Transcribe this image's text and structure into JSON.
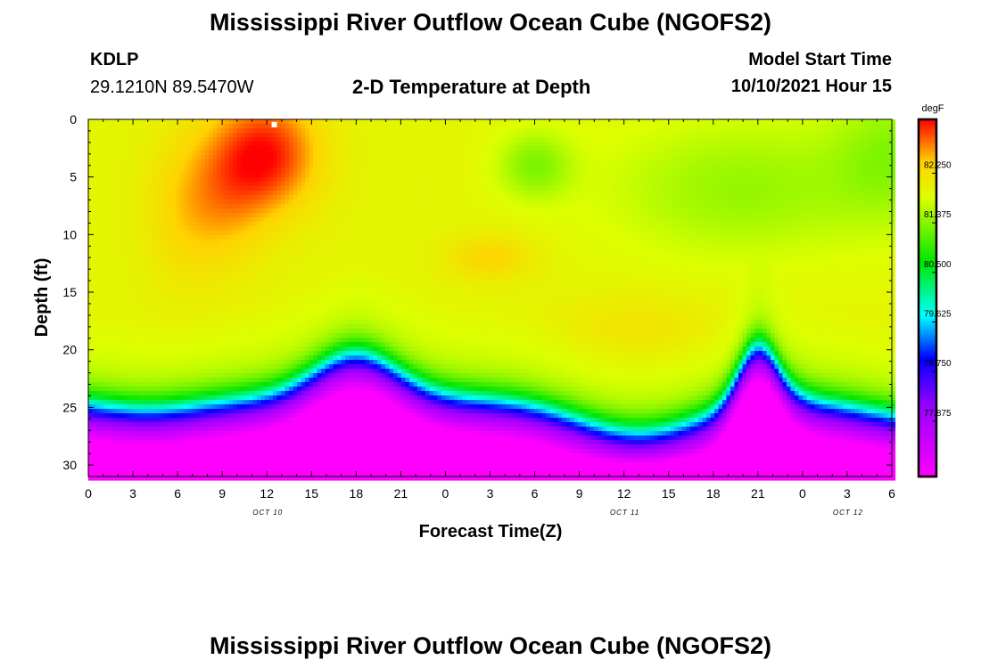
{
  "header": {
    "title": "Mississippi River Outflow Ocean Cube (NGOFS2)",
    "footer_title": "Mississippi River Outflow Ocean Cube (NGOFS2)",
    "station_id": "KDLP",
    "station_coords": "29.1210N  89.5470W",
    "plot_title": "2-D Temperature at Depth",
    "model_start_label": "Model Start Time",
    "model_start_value": "10/10/2021 Hour 15"
  },
  "chart_data": {
    "type": "heatmap",
    "title": "2-D Temperature at Depth",
    "xlabel": "Forecast Time(Z)",
    "ylabel": "Depth (ft)",
    "x_range_hours": [
      0,
      54
    ],
    "x_tick_labels": [
      "0",
      "3",
      "6",
      "9",
      "12",
      "15",
      "18",
      "21",
      "0",
      "3",
      "6",
      "9",
      "12",
      "15",
      "18",
      "21",
      "0",
      "3",
      "6"
    ],
    "date_labels": [
      {
        "text": "OCT 10",
        "at_hour": 12
      },
      {
        "text": "OCT 11",
        "at_hour": 36
      },
      {
        "text": "OCT 12",
        "at_hour": 51
      }
    ],
    "ylim": [
      0,
      31
    ],
    "y_ticks": [
      0,
      5,
      10,
      15,
      20,
      25,
      30
    ],
    "colorbar": {
      "unit": "degF",
      "range": [
        76.9,
        83.2
      ],
      "tick_labels": [
        "82.250",
        "81.375",
        "80.500",
        "79.625",
        "78.750",
        "77.875"
      ],
      "tick_values": [
        82.25,
        81.375,
        80.5,
        79.625,
        78.75,
        77.875
      ]
    },
    "temperature_features": [
      {
        "name": "warm surface core",
        "hour": 12,
        "depth_ft": 2,
        "degF": 83.1
      },
      {
        "name": "warm subsurface patch",
        "hour": 27,
        "depth_ft": 12,
        "degF": 82.4
      },
      {
        "name": "cool surface patch",
        "hour": 30,
        "depth_ft": 4,
        "degF": 81.4
      },
      {
        "name": "thermocline crest",
        "hour": 19,
        "depth_ft": 19,
        "degF": 80.5
      },
      {
        "name": "thermocline trough",
        "hour": 39,
        "depth_ft": 28,
        "degF": 79.6
      },
      {
        "name": "thermocline crest",
        "hour": 45,
        "depth_ft": 21,
        "degF": 80.5
      },
      {
        "name": "bottom minimum",
        "hour": 0,
        "depth_ft": 31,
        "degF": 77.0
      }
    ],
    "marker": {
      "hour": 12.5,
      "depth_ft": 0.3
    }
  }
}
